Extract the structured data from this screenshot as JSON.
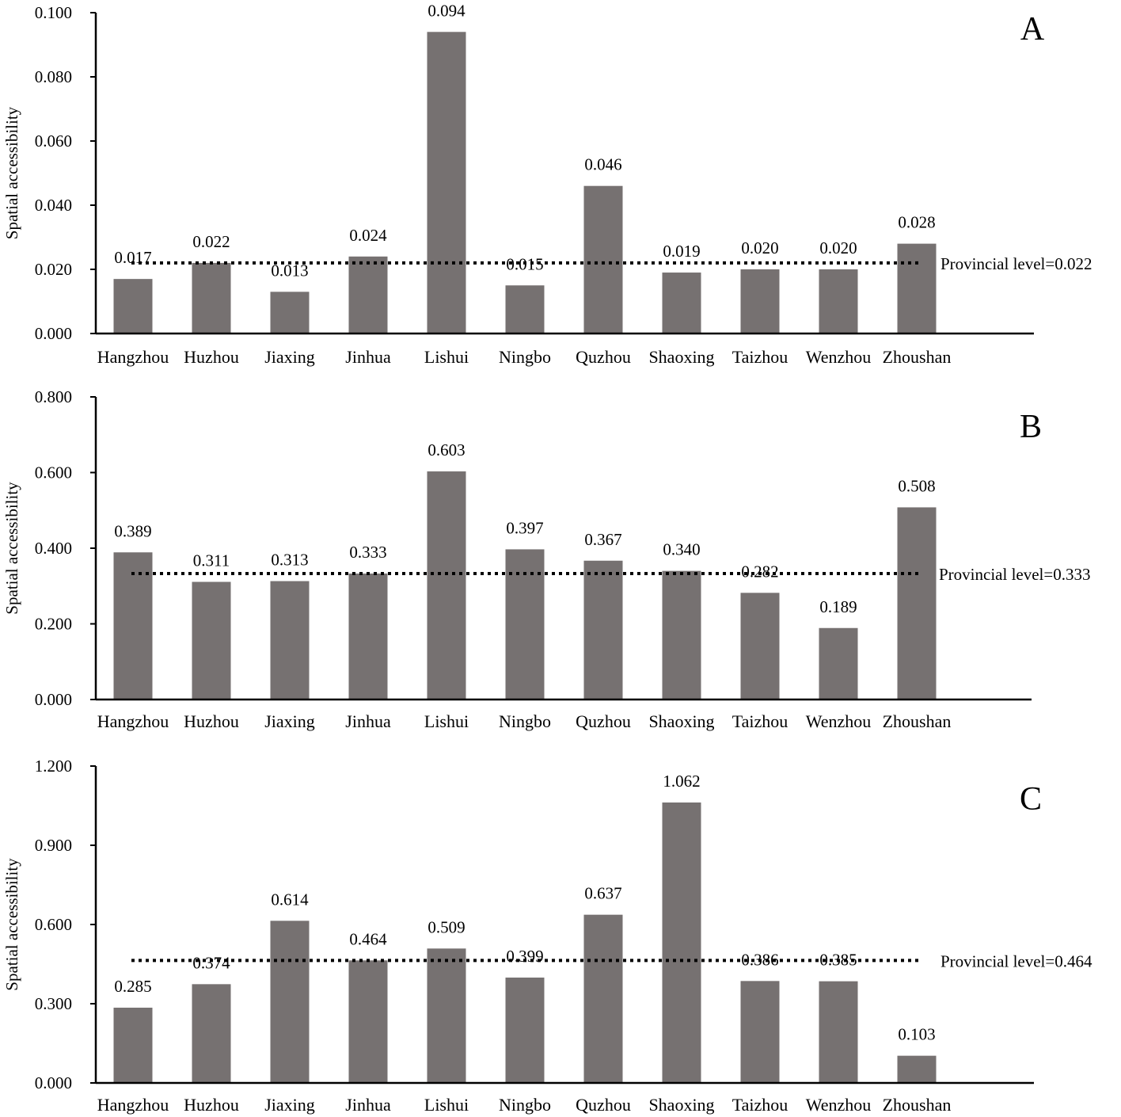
{
  "chart_data": [
    {
      "type": "bar",
      "panel": "A",
      "ylabel": "Spatial accessibility",
      "categories": [
        "Hangzhou",
        "Huzhou",
        "Jiaxing",
        "Jinhua",
        "Lishui",
        "Ningbo",
        "Quzhou",
        "Shaoxing",
        "Taizhou",
        "Wenzhou",
        "Zhoushan"
      ],
      "values": [
        0.017,
        0.022,
        0.013,
        0.024,
        0.094,
        0.015,
        0.046,
        0.019,
        0.02,
        0.02,
        0.028
      ],
      "value_labels": [
        "0.017",
        "0.022",
        "0.013",
        "0.024",
        "0.094",
        "0.015",
        "0.046",
        "0.019",
        "0.020",
        "0.020",
        "0.028"
      ],
      "ylim": [
        0,
        0.1
      ],
      "yticks": [
        0,
        0.02,
        0.04,
        0.06,
        0.08,
        0.1
      ],
      "ytick_labels": [
        "0.000",
        "0.020",
        "0.040",
        "0.060",
        "0.080",
        "0.100"
      ],
      "provincial_level": 0.022,
      "provincial_label": "Provincial level=0.022"
    },
    {
      "type": "bar",
      "panel": "B",
      "ylabel": "Spatial accessibility",
      "categories": [
        "Hangzhou",
        "Huzhou",
        "Jiaxing",
        "Jinhua",
        "Lishui",
        "Ningbo",
        "Quzhou",
        "Shaoxing",
        "Taizhou",
        "Wenzhou",
        "Zhoushan"
      ],
      "values": [
        0.389,
        0.311,
        0.313,
        0.333,
        0.603,
        0.397,
        0.367,
        0.34,
        0.282,
        0.189,
        0.508
      ],
      "value_labels": [
        "0.389",
        "0.311",
        "0.313",
        "0.333",
        "0.603",
        "0.397",
        "0.367",
        "0.340",
        "0.282",
        "0.189",
        "0.508"
      ],
      "ylim": [
        0,
        0.8
      ],
      "yticks": [
        0,
        0.2,
        0.4,
        0.6,
        0.8
      ],
      "ytick_labels": [
        "0.000",
        "0.200",
        "0.400",
        "0.600",
        "0.800"
      ],
      "provincial_level": 0.333,
      "provincial_label": "Provincial level=0.333"
    },
    {
      "type": "bar",
      "panel": "C",
      "ylabel": "Spatial accessibility",
      "categories": [
        "Hangzhou",
        "Huzhou",
        "Jiaxing",
        "Jinhua",
        "Lishui",
        "Ningbo",
        "Quzhou",
        "Shaoxing",
        "Taizhou",
        "Wenzhou",
        "Zhoushan"
      ],
      "values": [
        0.285,
        0.374,
        0.614,
        0.464,
        0.509,
        0.399,
        0.637,
        1.062,
        0.386,
        0.385,
        0.103
      ],
      "value_labels": [
        "0.285",
        "0.374",
        "0.614",
        "0.464",
        "0.509",
        "0.399",
        "0.637",
        "1.062",
        "0.386",
        "0.385",
        "0.103"
      ],
      "ylim": [
        0,
        1.2
      ],
      "yticks": [
        0,
        0.3,
        0.6,
        0.9,
        1.2
      ],
      "ytick_labels": [
        "0.000",
        "0.300",
        "0.600",
        "0.900",
        "1.200"
      ],
      "provincial_level": 0.464,
      "provincial_label": "Provincial level=0.464"
    }
  ]
}
